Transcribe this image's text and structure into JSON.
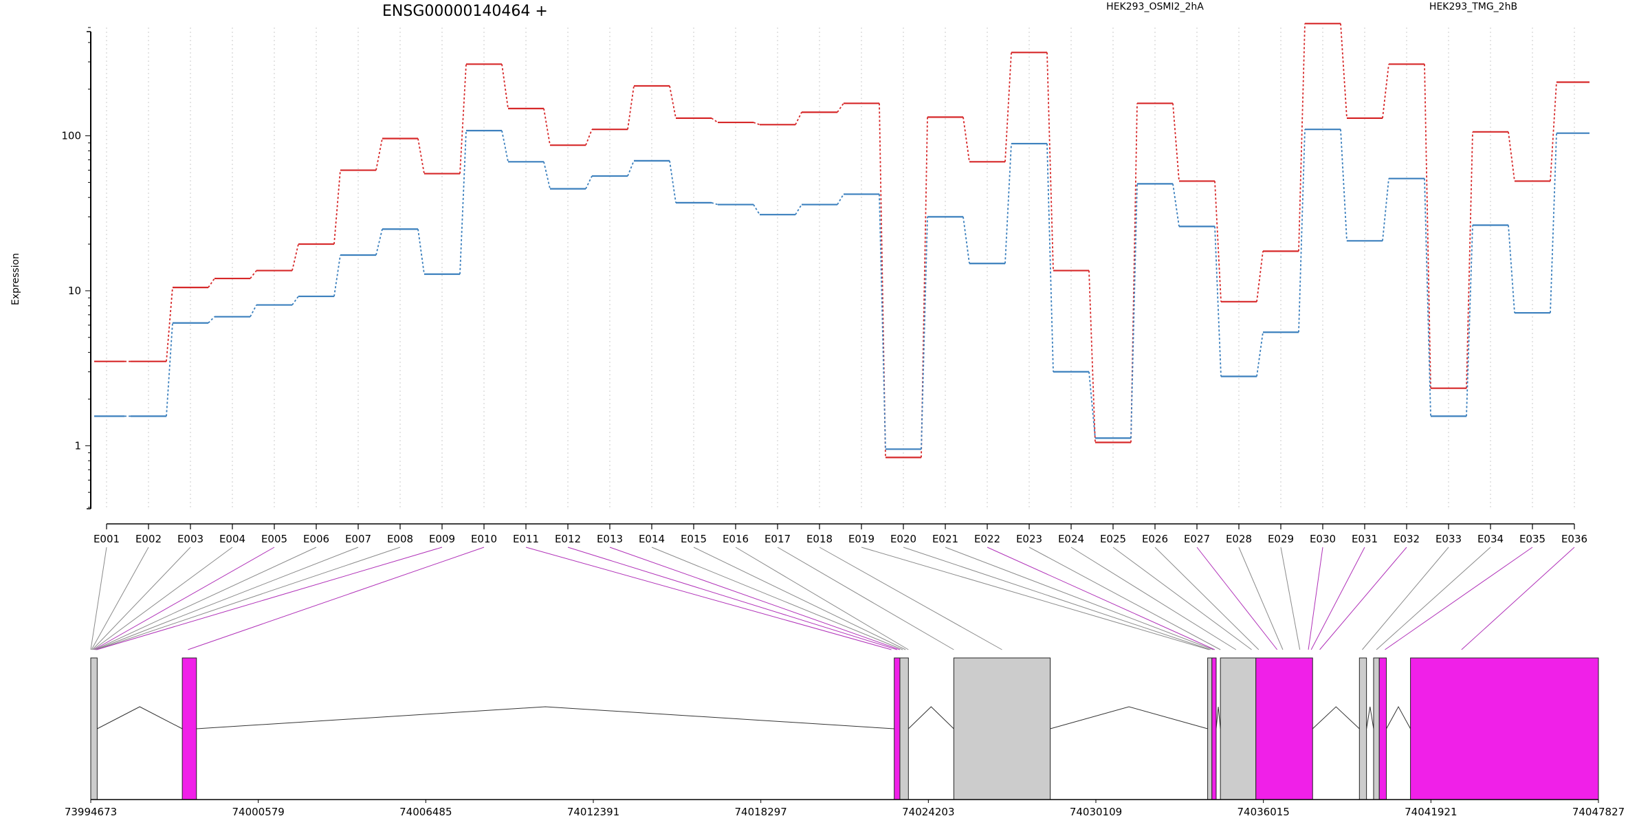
{
  "chart_data": {
    "type": "line",
    "title": "ENSG00000140464 +",
    "ylabel": "Expression",
    "xlabel": "",
    "yscale": "log10",
    "ylim": [
      0.4,
      500
    ],
    "yticks": [
      1,
      10,
      100
    ],
    "ytick_labels": [
      "1",
      "10",
      "100"
    ],
    "grid": "vertical-dotted",
    "legend_placement": "top",
    "categories": [
      "E001",
      "E002",
      "E003",
      "E004",
      "E005",
      "E006",
      "E007",
      "E008",
      "E009",
      "E010",
      "E011",
      "E012",
      "E013",
      "E014",
      "E015",
      "E016",
      "E017",
      "E018",
      "E019",
      "E020",
      "E021",
      "E022",
      "E023",
      "E024",
      "E025",
      "E026",
      "E027",
      "E028",
      "E029",
      "E030",
      "E031",
      "E032",
      "E033",
      "E034",
      "E035",
      "E036"
    ],
    "series": [
      {
        "name": "HEK293_OSMI2_2hA",
        "color": "#d62728",
        "values": [
          3.5,
          3.5,
          10.5,
          12.0,
          13.5,
          20.0,
          60.0,
          96.0,
          57.0,
          290.0,
          150.0,
          87.0,
          110.0,
          210.0,
          130.0,
          122.0,
          118.0,
          142.0,
          162.0,
          0.84,
          132.0,
          68.0,
          345.0,
          13.5,
          1.05,
          162.0,
          51.0,
          8.5,
          18.0,
          530.0,
          130.0,
          290.0,
          2.35,
          106.0,
          51.0,
          222.0
        ]
      },
      {
        "name": "HEK293_TMG_2hB",
        "color": "#3a7fbd",
        "values": [
          1.55,
          1.55,
          6.2,
          6.8,
          8.1,
          9.2,
          17.0,
          25.0,
          12.8,
          108.0,
          68.0,
          45.5,
          55.0,
          69.0,
          37.0,
          36.0,
          31.0,
          36.0,
          42.0,
          0.95,
          30.0,
          15.0,
          89.0,
          3.0,
          1.12,
          49.0,
          26.0,
          2.8,
          5.4,
          110.0,
          21.0,
          53.0,
          1.55,
          26.5,
          7.2,
          104.0
        ]
      }
    ],
    "gene_model": {
      "axis_ticks": [
        "73994673",
        "74000579",
        "74006485",
        "74012391",
        "74018297",
        "74024203",
        "74030109",
        "74036015",
        "74041921",
        "74047827"
      ],
      "range": [
        73994673,
        74047827
      ],
      "exons": [
        {
          "start": 73994673,
          "end": 73994900,
          "color": "#cccccc"
        },
        {
          "start": 73997900,
          "end": 73998400,
          "color": "#f020e8"
        },
        {
          "start": 74023000,
          "end": 74023200,
          "color": "#f020e8"
        },
        {
          "start": 74023200,
          "end": 74023500,
          "color": "#cccccc"
        },
        {
          "start": 74025100,
          "end": 74028500,
          "color": "#cccccc"
        },
        {
          "start": 74034050,
          "end": 74034200,
          "color": "#cccccc"
        },
        {
          "start": 74034200,
          "end": 74034350,
          "color": "#f020e8"
        },
        {
          "start": 74034500,
          "end": 74035750,
          "color": "#cccccc"
        },
        {
          "start": 74035750,
          "end": 74037750,
          "color": "#f020e8"
        },
        {
          "start": 74039400,
          "end": 74039650,
          "color": "#cccccc"
        },
        {
          "start": 74039900,
          "end": 74040100,
          "color": "#cccccc"
        },
        {
          "start": 74040100,
          "end": 74040350,
          "color": "#f020e8"
        },
        {
          "start": 74041200,
          "end": 74047827,
          "color": "#f020e8"
        }
      ],
      "bins": [
        73994673,
        73994700,
        73994730,
        73994760,
        73994790,
        73994820,
        73994850,
        73994870,
        73994880,
        73998100,
        74022900,
        74023100,
        74023200,
        74023300,
        74023400,
        74023500,
        74025100,
        74026800,
        74034100,
        74034150,
        74034250,
        74034300,
        74034500,
        74035050,
        74035600,
        74035850,
        74036500,
        74036700,
        74037300,
        74037600,
        74037700,
        74038000,
        74039500,
        74040000,
        74040300,
        74043000
      ],
      "bin_highlight": [
        false,
        false,
        false,
        false,
        true,
        false,
        false,
        false,
        true,
        true,
        true,
        true,
        true,
        false,
        false,
        false,
        false,
        false,
        false,
        false,
        false,
        true,
        false,
        false,
        false,
        false,
        true,
        false,
        false,
        true,
        true,
        true,
        false,
        false,
        true,
        true
      ]
    }
  }
}
